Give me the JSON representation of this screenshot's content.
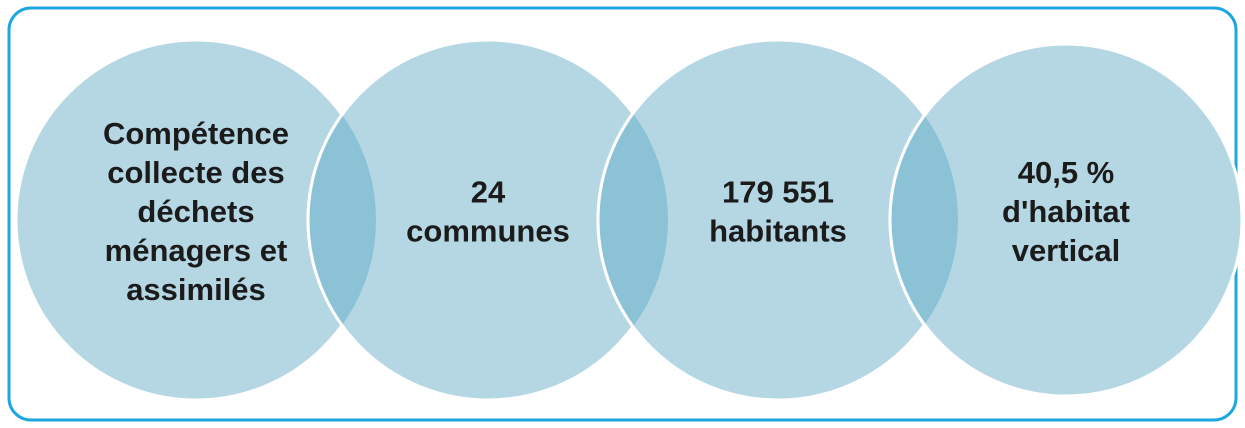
{
  "nodes": [
    {
      "lines": [
        "Compétence",
        "collecte des",
        "déchets",
        "ménagers et",
        "assimilés"
      ]
    },
    {
      "lines": [
        "24",
        "communes"
      ]
    },
    {
      "lines": [
        "179 551",
        "habitants"
      ]
    },
    {
      "lines": [
        "40,5 %",
        "d'habitat",
        "vertical"
      ]
    }
  ]
}
